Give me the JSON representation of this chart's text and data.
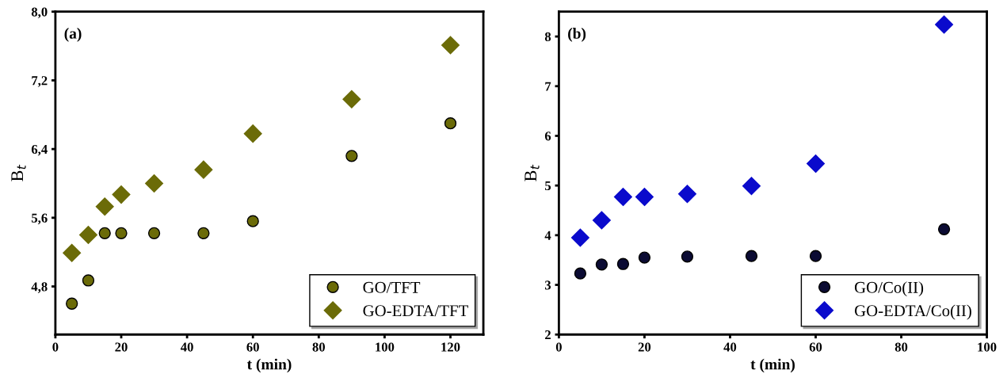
{
  "chart_data": [
    {
      "type": "scatter",
      "xlabel": "t (min)",
      "ylabel": "B$_{t}$",
      "annotations": [
        "(a)"
      ],
      "xlim": [
        0,
        130
      ],
      "xticks": [
        0,
        20,
        40,
        60,
        80,
        100,
        120
      ],
      "ylim": [
        4.24,
        8.0
      ],
      "yticks": [
        {
          "value": 4.8,
          "label": "4,8"
        },
        {
          "value": 5.6,
          "label": "5,6"
        },
        {
          "value": 6.4,
          "label": "6,4"
        },
        {
          "value": 7.2,
          "label": "7,2"
        },
        {
          "value": 8.0,
          "label": "8,0"
        }
      ],
      "grid": false,
      "legend": "bottom right",
      "series": [
        {
          "name": "GO/TFT",
          "color": "#6b6b08",
          "marker": "circle",
          "x": [
            5,
            10,
            15,
            20,
            30,
            45,
            60,
            90,
            120
          ],
          "values": [
            4.6,
            4.87,
            5.42,
            5.42,
            5.42,
            5.42,
            5.56,
            6.32,
            6.7
          ]
        },
        {
          "name": "GO-EDTA/TFT",
          "color": "#6b6b08",
          "marker": "diamond",
          "x": [
            5,
            10,
            15,
            20,
            30,
            45,
            60,
            90,
            120
          ],
          "values": [
            5.19,
            5.4,
            5.73,
            5.87,
            6.0,
            6.16,
            6.58,
            6.98,
            7.61
          ]
        }
      ]
    },
    {
      "type": "scatter",
      "xlabel": "t (min)",
      "ylabel": "B$_{t}$",
      "annotations": [
        "(b)"
      ],
      "xlim": [
        0,
        100
      ],
      "xticks": [
        0,
        20,
        40,
        60,
        80,
        100
      ],
      "ylim": [
        2,
        8.5
      ],
      "yticks": [
        2,
        3,
        4,
        5,
        6,
        7,
        8
      ],
      "grid": false,
      "legend": "bottom right",
      "series": [
        {
          "name": "GO/Co(II)",
          "color": "#0b0b33",
          "marker": "circle",
          "x": [
            5,
            10,
            15,
            20,
            30,
            45,
            60,
            90
          ],
          "values": [
            3.23,
            3.41,
            3.42,
            3.55,
            3.57,
            3.58,
            3.58,
            4.12
          ]
        },
        {
          "name": "GO-EDTA/Co(II)",
          "color": "#0a0acc",
          "marker": "diamond",
          "x": [
            5,
            10,
            15,
            20,
            30,
            45,
            60,
            90
          ],
          "values": [
            3.95,
            4.3,
            4.77,
            4.77,
            4.83,
            4.99,
            5.44,
            8.24
          ]
        }
      ]
    }
  ]
}
